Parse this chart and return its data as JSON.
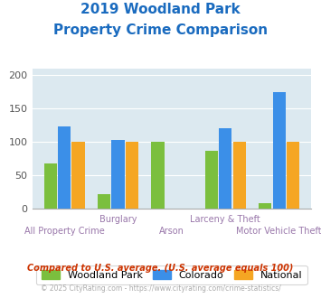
{
  "title_line1": "2019 Woodland Park",
  "title_line2": "Property Crime Comparison",
  "title_color": "#1a6bbf",
  "categories": [
    "All Property Crime",
    "Burglary",
    "Arson",
    "Larceny & Theft",
    "Motor Vehicle Theft"
  ],
  "woodland_park": [
    68,
    21,
    100,
    86,
    8
  ],
  "colorado": [
    123,
    103,
    null,
    120,
    175
  ],
  "national": [
    100,
    100,
    null,
    100,
    100
  ],
  "color_woodland": "#7bbf3e",
  "color_colorado": "#3b8fe8",
  "color_national": "#f5a623",
  "ylim": [
    0,
    210
  ],
  "yticks": [
    0,
    50,
    100,
    150,
    200
  ],
  "plot_bg": "#dce9f0",
  "xlabel_color": "#9977aa",
  "legend_labels": [
    "Woodland Park",
    "Colorado",
    "National"
  ],
  "footnote1": "Compared to U.S. average. (U.S. average equals 100)",
  "footnote2": "© 2025 CityRating.com - https://www.cityrating.com/crime-statistics/",
  "footnote1_color": "#cc3300",
  "footnote2_color": "#aaaaaa",
  "footnote2_url_color": "#3b8fe8"
}
